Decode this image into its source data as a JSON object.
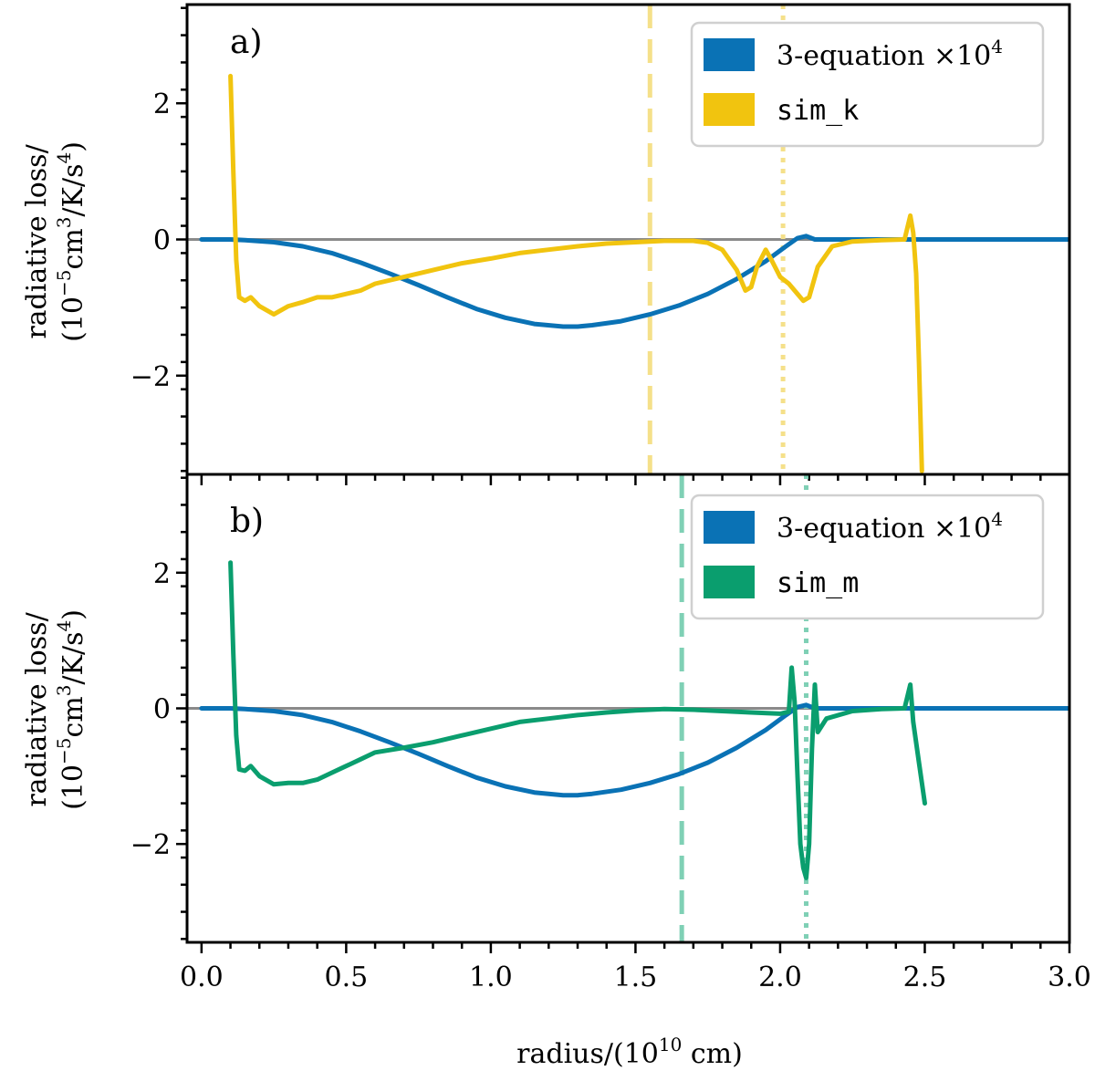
{
  "chart_data": [
    {
      "type": "line",
      "panel_label": "a)",
      "xlabel": "radius/(10",
      "xlabel_sup": "10",
      "xlabel_tail": " cm)",
      "ylabel_line1": "radiative loss/",
      "ylabel_line2": "(10",
      "ylabel_line2_sup1": "−5",
      "ylabel_line2_mid": "cm",
      "ylabel_line2_sup2": "3",
      "ylabel_line2_end": "/K/s",
      "ylabel_line2_sup3": "4",
      "ylabel_line2_close": ")",
      "xlim": [
        -0.05,
        3.0
      ],
      "ylim": [
        -3.45,
        3.45
      ],
      "xticks": [
        "0.0",
        "0.5",
        "1.0",
        "1.5",
        "2.0",
        "2.5",
        "3.0"
      ],
      "yticks": [
        "−2",
        "0",
        "2"
      ],
      "reference_line_y": 0,
      "vlines": [
        {
          "x": 1.55,
          "style": "dashed",
          "color": "#f5e08a"
        },
        {
          "x": 2.01,
          "style": "dotted",
          "color": "#f5e08a"
        }
      ],
      "legend": {
        "placement": "top-right",
        "entries": [
          {
            "label": "3-equation ×10",
            "sup": "4",
            "color": "#0a72b5",
            "mono": false
          },
          {
            "label": "sim_k",
            "sup": "",
            "color": "#f1c40f",
            "mono": true
          }
        ]
      },
      "series": [
        {
          "name": "3-equation ×10^4",
          "color": "#0a72b5",
          "x": [
            0.0,
            0.1,
            0.15,
            0.25,
            0.35,
            0.45,
            0.55,
            0.65,
            0.75,
            0.85,
            0.95,
            1.05,
            1.15,
            1.25,
            1.3,
            1.35,
            1.45,
            1.55,
            1.65,
            1.75,
            1.85,
            1.95,
            2.02,
            2.06,
            2.09,
            2.12,
            2.3,
            2.5,
            3.0
          ],
          "y": [
            0.0,
            0.0,
            -0.01,
            -0.04,
            -0.1,
            -0.2,
            -0.34,
            -0.5,
            -0.67,
            -0.85,
            -1.02,
            -1.15,
            -1.24,
            -1.28,
            -1.28,
            -1.26,
            -1.2,
            -1.1,
            -0.97,
            -0.8,
            -0.58,
            -0.32,
            -0.1,
            0.02,
            0.05,
            0.0,
            0.0,
            0.0,
            0.0
          ]
        },
        {
          "name": "sim_k",
          "color": "#f1c40f",
          "x": [
            0.1,
            0.11,
            0.12,
            0.13,
            0.15,
            0.17,
            0.2,
            0.25,
            0.3,
            0.35,
            0.4,
            0.45,
            0.5,
            0.55,
            0.6,
            0.7,
            0.8,
            0.9,
            1.0,
            1.1,
            1.2,
            1.3,
            1.4,
            1.5,
            1.6,
            1.7,
            1.75,
            1.8,
            1.85,
            1.88,
            1.9,
            1.92,
            1.95,
            1.97,
            2.0,
            2.03,
            2.06,
            2.08,
            2.1,
            2.13,
            2.18,
            2.25,
            2.35,
            2.43,
            2.45,
            2.46,
            2.47,
            2.48,
            2.49
          ],
          "y": [
            2.4,
            1.0,
            -0.3,
            -0.85,
            -0.9,
            -0.85,
            -0.98,
            -1.1,
            -0.98,
            -0.92,
            -0.85,
            -0.85,
            -0.8,
            -0.75,
            -0.65,
            -0.55,
            -0.45,
            -0.35,
            -0.28,
            -0.2,
            -0.15,
            -0.1,
            -0.06,
            -0.04,
            -0.02,
            -0.02,
            -0.05,
            -0.15,
            -0.45,
            -0.75,
            -0.7,
            -0.4,
            -0.15,
            -0.3,
            -0.55,
            -0.65,
            -0.8,
            -0.9,
            -0.85,
            -0.4,
            -0.1,
            -0.03,
            -0.01,
            0.0,
            0.35,
            0.1,
            -0.5,
            -1.8,
            -3.4
          ]
        }
      ]
    },
    {
      "type": "line",
      "panel_label": "b)",
      "xlim": [
        -0.05,
        3.0
      ],
      "ylim": [
        -3.45,
        3.45
      ],
      "xticks": [
        "0.0",
        "0.5",
        "1.0",
        "1.5",
        "2.0",
        "2.5",
        "3.0"
      ],
      "yticks": [
        "−2",
        "0",
        "2"
      ],
      "reference_line_y": 0,
      "vlines": [
        {
          "x": 1.66,
          "style": "dashed",
          "color": "#7fd0b5"
        },
        {
          "x": 2.09,
          "style": "dotted",
          "color": "#7fd0b5"
        }
      ],
      "legend": {
        "placement": "top-right",
        "entries": [
          {
            "label": "3-equation ×10",
            "sup": "4",
            "color": "#0a72b5",
            "mono": false
          },
          {
            "label": "sim_m",
            "sup": "",
            "color": "#0a9e6e",
            "mono": true
          }
        ]
      },
      "series": [
        {
          "name": "3-equation ×10^4",
          "color": "#0a72b5",
          "x": [
            0.0,
            0.1,
            0.15,
            0.25,
            0.35,
            0.45,
            0.55,
            0.65,
            0.75,
            0.85,
            0.95,
            1.05,
            1.15,
            1.25,
            1.3,
            1.35,
            1.45,
            1.55,
            1.65,
            1.75,
            1.85,
            1.95,
            2.02,
            2.06,
            2.09,
            2.12,
            2.3,
            2.5,
            3.0
          ],
          "y": [
            0.0,
            0.0,
            -0.01,
            -0.04,
            -0.1,
            -0.2,
            -0.34,
            -0.5,
            -0.67,
            -0.85,
            -1.02,
            -1.15,
            -1.24,
            -1.28,
            -1.28,
            -1.26,
            -1.2,
            -1.1,
            -0.97,
            -0.8,
            -0.58,
            -0.32,
            -0.1,
            0.02,
            0.05,
            0.0,
            0.0,
            0.0,
            0.0
          ]
        },
        {
          "name": "sim_m",
          "color": "#0a9e6e",
          "x": [
            0.1,
            0.11,
            0.12,
            0.13,
            0.15,
            0.17,
            0.2,
            0.25,
            0.3,
            0.35,
            0.4,
            0.45,
            0.5,
            0.55,
            0.6,
            0.7,
            0.8,
            0.9,
            1.0,
            1.1,
            1.2,
            1.3,
            1.4,
            1.5,
            1.6,
            1.7,
            1.8,
            1.9,
            2.0,
            2.03,
            2.04,
            2.05,
            2.06,
            2.07,
            2.08,
            2.09,
            2.1,
            2.11,
            2.12,
            2.13,
            2.16,
            2.25,
            2.35,
            2.43,
            2.45,
            2.46,
            2.48,
            2.5
          ],
          "y": [
            2.15,
            0.8,
            -0.4,
            -0.9,
            -0.92,
            -0.85,
            -1.0,
            -1.12,
            -1.1,
            -1.1,
            -1.05,
            -0.95,
            -0.85,
            -0.75,
            -0.65,
            -0.58,
            -0.5,
            -0.4,
            -0.3,
            -0.2,
            -0.15,
            -0.1,
            -0.06,
            -0.03,
            -0.01,
            -0.02,
            -0.04,
            -0.06,
            -0.08,
            -0.05,
            0.6,
            0.1,
            -1.0,
            -2.0,
            -2.35,
            -2.5,
            -2.0,
            -0.6,
            0.35,
            -0.35,
            -0.15,
            -0.04,
            -0.01,
            0.0,
            0.35,
            -0.2,
            -0.8,
            -1.4
          ]
        }
      ]
    }
  ]
}
